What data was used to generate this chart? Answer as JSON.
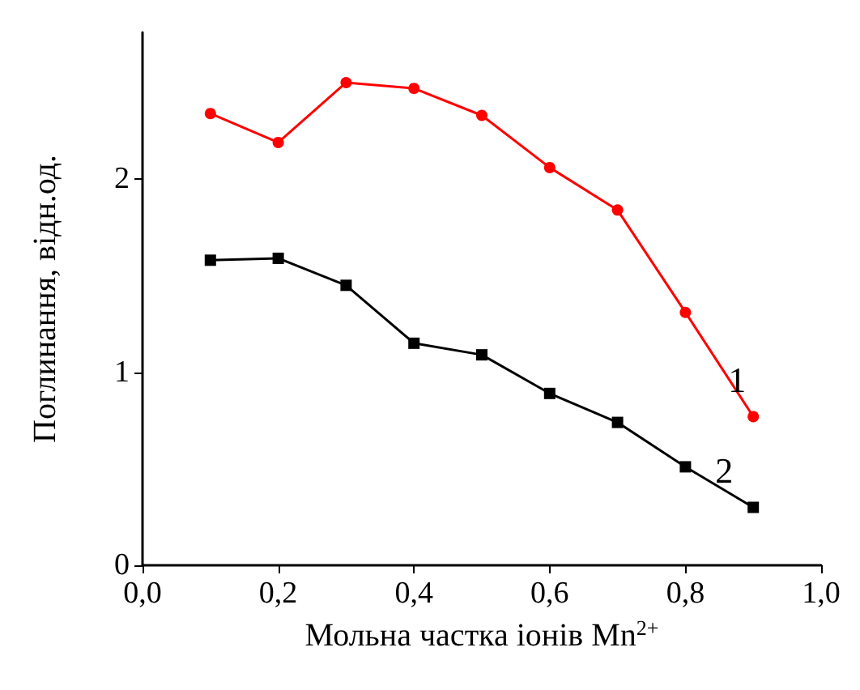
{
  "chart_data": {
    "type": "line",
    "xlabel": "Мольна частка іонів Mn$^{2+}$",
    "ylabel": "Поглинання, відн.од.",
    "x": [
      0.1,
      0.2,
      0.3,
      0.4,
      0.5,
      0.6,
      0.7,
      0.8,
      0.9
    ],
    "series": [
      {
        "name": "1",
        "color": "#ff0000",
        "marker": "circle",
        "values": [
          2.34,
          2.19,
          2.5,
          2.47,
          2.33,
          2.06,
          1.84,
          1.31,
          0.77
        ]
      },
      {
        "name": "2",
        "color": "#000000",
        "marker": "square",
        "values": [
          1.58,
          1.59,
          1.45,
          1.15,
          1.09,
          0.89,
          0.74,
          0.51,
          0.3
        ]
      }
    ],
    "xlim": [
      0,
      1
    ],
    "xticks": [
      {
        "value": 0,
        "label": "0,0"
      },
      {
        "value": 0.2,
        "label": "0,2"
      },
      {
        "value": 0.4,
        "label": "0,4"
      },
      {
        "value": 0.6,
        "label": "0,6"
      },
      {
        "value": 0.8,
        "label": "0,8"
      },
      {
        "value": 1,
        "label": "1,0"
      }
    ],
    "ylim": [
      0,
      2.76
    ],
    "yticks": [
      0,
      1,
      2
    ],
    "grid": false,
    "legend": false
  }
}
